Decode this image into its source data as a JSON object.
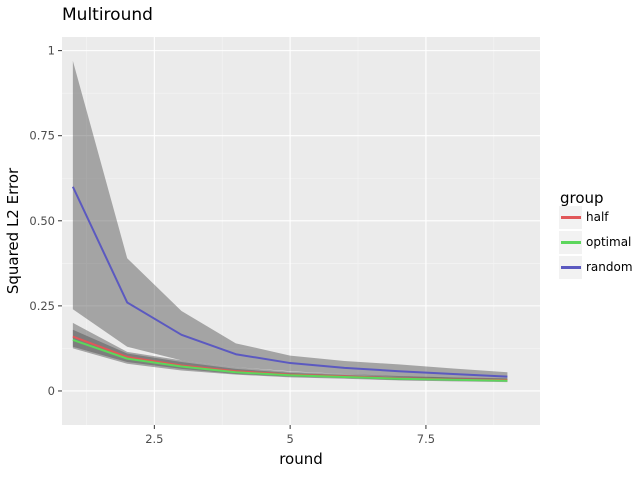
{
  "chart_data": {
    "type": "line",
    "title": "Multiround",
    "xlabel": "round",
    "ylabel": "Squared L2 Error",
    "xlim": [
      0.8,
      9.6
    ],
    "ylim": [
      -0.1,
      1.04
    ],
    "x_ticks": [
      2.5,
      5,
      7.5
    ],
    "x_tick_labels": [
      "2.5",
      "5",
      "7.5"
    ],
    "y_ticks": [
      0,
      0.25,
      0.5,
      0.75,
      1
    ],
    "y_tick_labels": [
      "0",
      "0.25",
      "0.50",
      "0.75",
      "1"
    ],
    "grid": true,
    "legend": {
      "title": "group",
      "position": "right"
    },
    "x": [
      1,
      2,
      3,
      4,
      5,
      6,
      7,
      8,
      9
    ],
    "series": [
      {
        "name": "half",
        "color": "#e15759",
        "values": [
          0.16,
          0.1,
          0.075,
          0.058,
          0.048,
          0.043,
          0.037,
          0.034,
          0.032
        ],
        "lower": [
          0.13,
          0.085,
          0.065,
          0.05,
          0.042,
          0.038,
          0.032,
          0.03,
          0.028
        ],
        "upper": [
          0.2,
          0.115,
          0.09,
          0.07,
          0.057,
          0.05,
          0.044,
          0.04,
          0.037
        ]
      },
      {
        "name": "optimal",
        "color": "#5cd65c",
        "values": [
          0.15,
          0.095,
          0.072,
          0.055,
          0.046,
          0.041,
          0.036,
          0.033,
          0.03
        ],
        "lower": [
          0.125,
          0.08,
          0.06,
          0.048,
          0.04,
          0.036,
          0.031,
          0.028,
          0.026
        ],
        "upper": [
          0.18,
          0.11,
          0.085,
          0.065,
          0.053,
          0.047,
          0.042,
          0.038,
          0.035
        ]
      },
      {
        "name": "random",
        "color": "#5b59c0",
        "values": [
          0.6,
          0.26,
          0.165,
          0.108,
          0.082,
          0.068,
          0.058,
          0.05,
          0.042
        ],
        "lower": [
          0.24,
          0.13,
          0.09,
          0.07,
          0.058,
          0.05,
          0.042,
          0.036,
          0.032
        ],
        "upper": [
          0.97,
          0.39,
          0.235,
          0.14,
          0.104,
          0.088,
          0.078,
          0.066,
          0.055
        ]
      }
    ]
  }
}
